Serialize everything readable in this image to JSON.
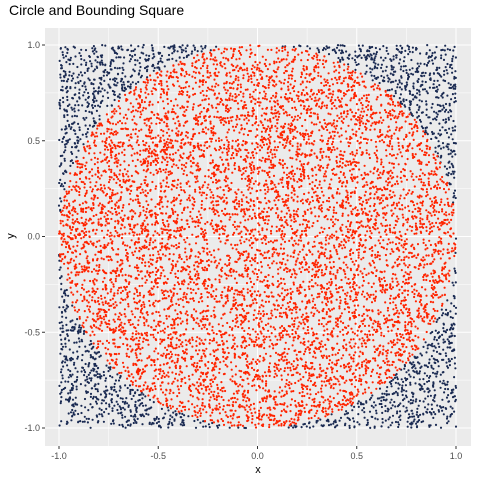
{
  "chart_data": {
    "type": "scatter",
    "title": "Circle and Bounding Square",
    "xlabel": "x",
    "ylabel": "y",
    "xlim": [
      -1.0,
      1.0
    ],
    "ylim": [
      -1.0,
      1.0
    ],
    "x_ticks": [
      "-1.0",
      "-0.5",
      "0.0",
      "0.5",
      "1.0"
    ],
    "y_ticks": [
      "-1.0",
      "-0.5",
      "0.0",
      "0.5",
      "1.0"
    ],
    "grid": true,
    "legend": "none",
    "series": [
      {
        "color": "#ff2400",
        "region": "inside unit circle",
        "approx_count": 7850
      },
      {
        "color": "#1a2a52",
        "region": "outside unit circle",
        "approx_count": 2150
      }
    ],
    "background": "#ebebeb",
    "gridline_color": "#ffffff"
  }
}
